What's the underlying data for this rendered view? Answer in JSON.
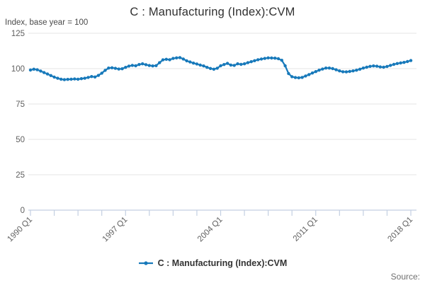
{
  "header": {
    "title": "C : Manufacturing (Index):CVM",
    "subtitle": "Index, base year = 100"
  },
  "legend": {
    "label": "C : Manufacturing (Index):CVM",
    "marker_icon": "line-dot-icon"
  },
  "footer": {
    "source_label": "Source:"
  },
  "colors": {
    "series_blue": "#1779ba",
    "gridline": "#e6e6e6",
    "axis_line": "#c3cfe2",
    "tick_text": "#606060",
    "title_text": "#303030"
  },
  "chart_data": {
    "type": "line",
    "title": "C : Manufacturing (Index):CVM",
    "subtitle": "Index, base year = 100",
    "xlabel": "",
    "ylabel": "Index, base year = 100",
    "ylim": [
      0,
      125
    ],
    "y_ticks": [
      0,
      25,
      50,
      75,
      100,
      125
    ],
    "grid": true,
    "legend_position": "bottom",
    "x_is_quarterly": true,
    "x_range": [
      "1990 Q1",
      "2018 Q1"
    ],
    "x_tick_labels": [
      "1990 Q1",
      "1997 Q1",
      "2004 Q1",
      "2011 Q1",
      "2018 Q1"
    ],
    "x_tick_quarter_indices": [
      0,
      28,
      56,
      84,
      112
    ],
    "minor_tick_every_quarters": 7,
    "series": [
      {
        "name": "C : Manufacturing (Index):CVM",
        "color": "#1779ba",
        "start": "1990 Q1",
        "values": [
          99.0,
          99.6,
          99.2,
          98.3,
          97.2,
          96.2,
          95.1,
          94.0,
          93.2,
          92.5,
          92.2,
          92.4,
          92.5,
          92.7,
          92.5,
          92.9,
          93.2,
          93.8,
          94.4,
          94.1,
          95.2,
          96.8,
          98.8,
          100.4,
          100.6,
          100.2,
          99.7,
          99.9,
          100.9,
          101.8,
          102.3,
          102.0,
          102.9,
          103.4,
          102.8,
          102.2,
          101.9,
          102.1,
          104.2,
          106.2,
          106.6,
          106.3,
          107.2,
          107.6,
          107.8,
          106.8,
          105.5,
          104.7,
          103.9,
          103.3,
          102.5,
          101.9,
          100.9,
          100.1,
          99.6,
          100.3,
          102.0,
          102.9,
          103.7,
          102.5,
          102.3,
          103.4,
          103.0,
          103.4,
          104.2,
          104.9,
          105.6,
          106.3,
          106.8,
          107.2,
          107.6,
          107.5,
          107.4,
          107.0,
          105.9,
          102.0,
          96.5,
          94.3,
          93.7,
          93.5,
          93.8,
          94.8,
          95.8,
          96.9,
          97.9,
          98.9,
          99.7,
          100.4,
          100.4,
          100.0,
          99.2,
          98.4,
          97.8,
          97.7,
          98.0,
          98.4,
          98.9,
          99.6,
          100.4,
          101.0,
          101.6,
          101.9,
          101.7,
          101.2,
          101.0,
          101.5,
          102.3,
          103.0,
          103.6,
          104.0,
          104.4,
          105.0,
          105.7
        ]
      }
    ]
  }
}
